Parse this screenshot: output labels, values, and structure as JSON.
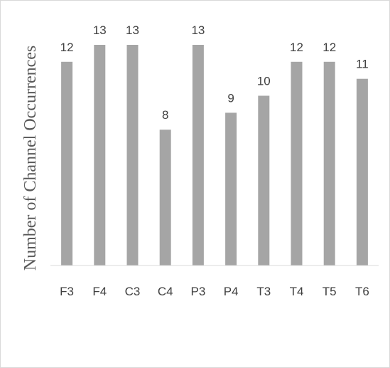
{
  "chart_data": {
    "type": "bar",
    "title": "",
    "xlabel": "",
    "ylabel": "Number of Channel Occurrences",
    "categories": [
      "F3",
      "F4",
      "C3",
      "C4",
      "P3",
      "P4",
      "T3",
      "T4",
      "T5",
      "T6"
    ],
    "values": [
      12,
      13,
      13,
      8,
      13,
      9,
      10,
      12,
      12,
      11
    ],
    "ylim": [
      0,
      13
    ],
    "grid": false,
    "legend": "none",
    "bar_color": "#a5a5a5",
    "axis_color": "#d9d9d9",
    "data_labels": true
  }
}
